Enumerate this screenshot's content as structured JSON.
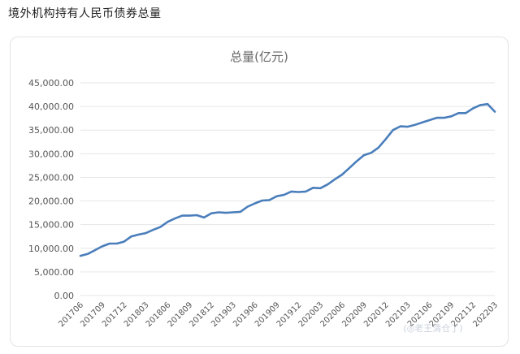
{
  "page": {
    "title": "境外机构持有人民币债券总量"
  },
  "chart_data": {
    "type": "line",
    "title": "总量(亿元)",
    "xlabel": "",
    "ylabel": "",
    "ylim": [
      0,
      45000
    ],
    "yticks": [
      "0.00",
      "5,000.00",
      "10,000.00",
      "15,000.00",
      "20,000.00",
      "25,000.00",
      "30,000.00",
      "35,000.00",
      "40,000.00",
      "45,000.00"
    ],
    "ytick_values": [
      0,
      5000,
      10000,
      15000,
      20000,
      25000,
      30000,
      35000,
      40000,
      45000
    ],
    "grid": true,
    "legend": "none",
    "x": [
      "201706",
      "201707",
      "201708",
      "201709",
      "201710",
      "201711",
      "201712",
      "201801",
      "201802",
      "201803",
      "201804",
      "201805",
      "201806",
      "201807",
      "201808",
      "201809",
      "201810",
      "201811",
      "201812",
      "201901",
      "201902",
      "201903",
      "201904",
      "201905",
      "201906",
      "201907",
      "201908",
      "201909",
      "201910",
      "201911",
      "201912",
      "202001",
      "202002",
      "202003",
      "202004",
      "202005",
      "202006",
      "202007",
      "202008",
      "202009",
      "202010",
      "202011",
      "202012",
      "202101",
      "202102",
      "202103",
      "202104",
      "202105",
      "202106",
      "202107",
      "202108",
      "202109",
      "202110",
      "202111",
      "202112",
      "202201",
      "202202",
      "202203"
    ],
    "xtick_labels": [
      "201706",
      "201709",
      "201712",
      "201803",
      "201806",
      "201809",
      "201812",
      "201903",
      "201906",
      "201909",
      "201912",
      "202003",
      "202006",
      "202009",
      "202012",
      "202103",
      "202106",
      "202109",
      "202112",
      "202203"
    ],
    "series": [
      {
        "color": "#4a7ebb",
        "values": [
          8400,
          8800,
          9600,
          10400,
          11000,
          11000,
          11400,
          12500,
          12900,
          13200,
          13900,
          14500,
          15600,
          16300,
          16900,
          16900,
          17000,
          16500,
          17400,
          17600,
          17500,
          17600,
          17700,
          18800,
          19500,
          20100,
          20200,
          21000,
          21300,
          22000,
          21900,
          22000,
          22800,
          22700,
          23500,
          24600,
          25600,
          27000,
          28400,
          29700,
          30200,
          31300,
          33100,
          35000,
          35800,
          35700,
          36100,
          36600,
          37100,
          37600,
          37600,
          37900,
          38600,
          38600,
          39600,
          40300,
          40500,
          38900
        ]
      }
    ]
  },
  "watermark": {
    "text": "(◎老王清仓了)"
  }
}
